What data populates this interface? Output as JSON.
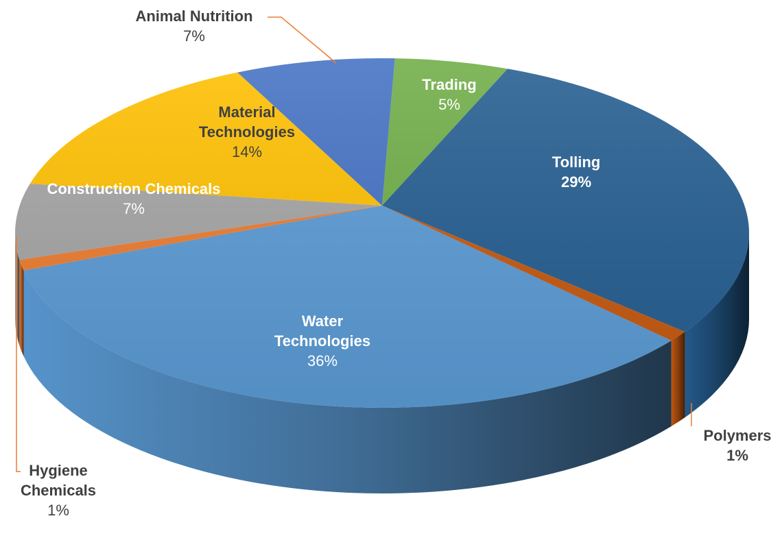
{
  "chart_data": {
    "type": "pie3d",
    "categories": [
      "Trading",
      "Tolling",
      "Polymers",
      "Water Technologies",
      "Hygiene Chemicals",
      "Construction Chemicals",
      "Material Technologies",
      "Animal Nutrition"
    ],
    "values": [
      5,
      29,
      1,
      36,
      1,
      7,
      14,
      7
    ],
    "value_labels": [
      "5%",
      "29%",
      "1%",
      "36%",
      "1%",
      "7%",
      "14%",
      "7%"
    ],
    "colors": [
      "#70ad47",
      "#255e91",
      "#c55a11",
      "#5b9bd5",
      "#ed7d31",
      "#a5a5a5",
      "#ffc000",
      "#4472c4"
    ]
  }
}
